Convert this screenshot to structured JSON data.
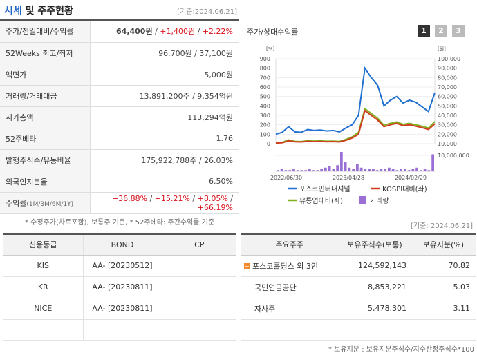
{
  "header": {
    "title_a": "시세",
    "title_b": " 및 주주현황",
    "date": "[기준:2024.06.21]"
  },
  "info": [
    {
      "label": "주가/전일대비/수익률",
      "price": "64,400원",
      "change": "+1,400원",
      "rate": "+2.22%"
    },
    {
      "label": "52Weeks 최고/최저",
      "value": "96,700원 / 37,100원"
    },
    {
      "label": "액면가",
      "value": "5,000원"
    },
    {
      "label": "거래량/거래대금",
      "value": "13,891,200주 / 9,354억원"
    },
    {
      "label": "시가총액",
      "value": "113,294억원"
    },
    {
      "label": "52주베타",
      "value": "1.76"
    },
    {
      "label": "발행주식수/유동비율",
      "value": "175,922,788주 / 26.03%"
    },
    {
      "label": "외국인지분율",
      "value": "6.50%"
    },
    {
      "label": "수익률",
      "label_sub": "(1M/3M/6M/1Y)",
      "r1": "+36.88%",
      "r2": "+15.21%",
      "r3": "+8.05%",
      "r4": "+66.19%"
    }
  ],
  "note1": "* 수정주가(차트포함), 보통주 기준, * 52주베타: 주간수익률 기준",
  "chart": {
    "title": "주가/상대수익률",
    "periods": [
      "1",
      "2",
      "3"
    ],
    "active_period": "1"
  },
  "chart_data": {
    "type": "line",
    "y_left_unit": "[%]",
    "y_right_unit": "[원]",
    "y_left_ticks": [
      "900",
      "800",
      "700",
      "600",
      "500",
      "400",
      "300",
      "200",
      "100",
      "0"
    ],
    "y_right_ticks": [
      "100,000",
      "90,000",
      "80,000",
      "70,000",
      "60,000",
      "50,000",
      "40,000",
      "30,000",
      "20,000",
      "10,000"
    ],
    "y_vol_ticks": [
      "10,000,000"
    ],
    "x_ticks": [
      "2022/06/30",
      "2023/04/28",
      "2024/02/29"
    ],
    "ylim_left": [
      0,
      900
    ],
    "series": [
      {
        "name": "포스코인터내셔널",
        "color": "#1f6fd1",
        "values": [
          100,
          120,
          180,
          125,
          120,
          150,
          140,
          145,
          135,
          140,
          125,
          165,
          200,
          300,
          800,
          700,
          620,
          400,
          460,
          500,
          430,
          460,
          440,
          390,
          340,
          540
        ]
      },
      {
        "name": "KOSPI대비(좌)",
        "color": "#d23c1e",
        "values": [
          5,
          10,
          30,
          20,
          18,
          25,
          22,
          24,
          20,
          22,
          18,
          35,
          60,
          100,
          350,
          300,
          250,
          180,
          200,
          215,
          190,
          200,
          185,
          170,
          150,
          210
        ]
      },
      {
        "name": "유통업대비(좌)",
        "color": "#7fb01d",
        "values": [
          8,
          14,
          40,
          25,
          22,
          32,
          28,
          30,
          26,
          28,
          24,
          45,
          72,
          120,
          370,
          320,
          270,
          195,
          215,
          230,
          205,
          215,
          200,
          185,
          165,
          235
        ]
      }
    ],
    "volume": {
      "name": "거래량",
      "color": "#9a6fd6",
      "values": [
        1,
        2,
        1,
        1,
        2,
        1,
        1,
        1,
        2,
        1,
        1,
        2,
        3,
        4,
        2,
        5,
        16,
        8,
        3,
        2,
        6,
        3,
        2,
        2,
        2,
        1,
        2,
        2,
        3,
        2,
        1,
        2,
        2,
        1,
        2,
        3,
        1,
        2,
        1,
        14
      ]
    }
  },
  "credit": {
    "headers": [
      "신용등급",
      "BOND",
      "CP"
    ],
    "rows": [
      {
        "agency": "KIS",
        "bond": "AA-  [20230512]",
        "cp": ""
      },
      {
        "agency": "KR",
        "bond": "AA-  [20230811]",
        "cp": ""
      },
      {
        "agency": "NICE",
        "bond": "AA-  [20230811]",
        "cp": ""
      },
      {
        "agency": "",
        "bond": "",
        "cp": ""
      }
    ]
  },
  "holders": {
    "date": "[기준: 2024.06.21]",
    "headers": [
      "주요주주",
      "보유주식수(보통)",
      "보유지분(%)"
    ],
    "rows": [
      {
        "name": "포스코홀딩스 외 3인",
        "shares": "124,592,143",
        "pct": "70.82",
        "expandable": true
      },
      {
        "name": "국민연금공단",
        "shares": "8,853,221",
        "pct": "5.03"
      },
      {
        "name": "자사주",
        "shares": "5,478,301",
        "pct": "3.11"
      },
      {
        "name": "",
        "shares": "",
        "pct": ""
      }
    ],
    "note": "* 보유지분 : 보유지분주식수/지수산정주식수*100"
  }
}
